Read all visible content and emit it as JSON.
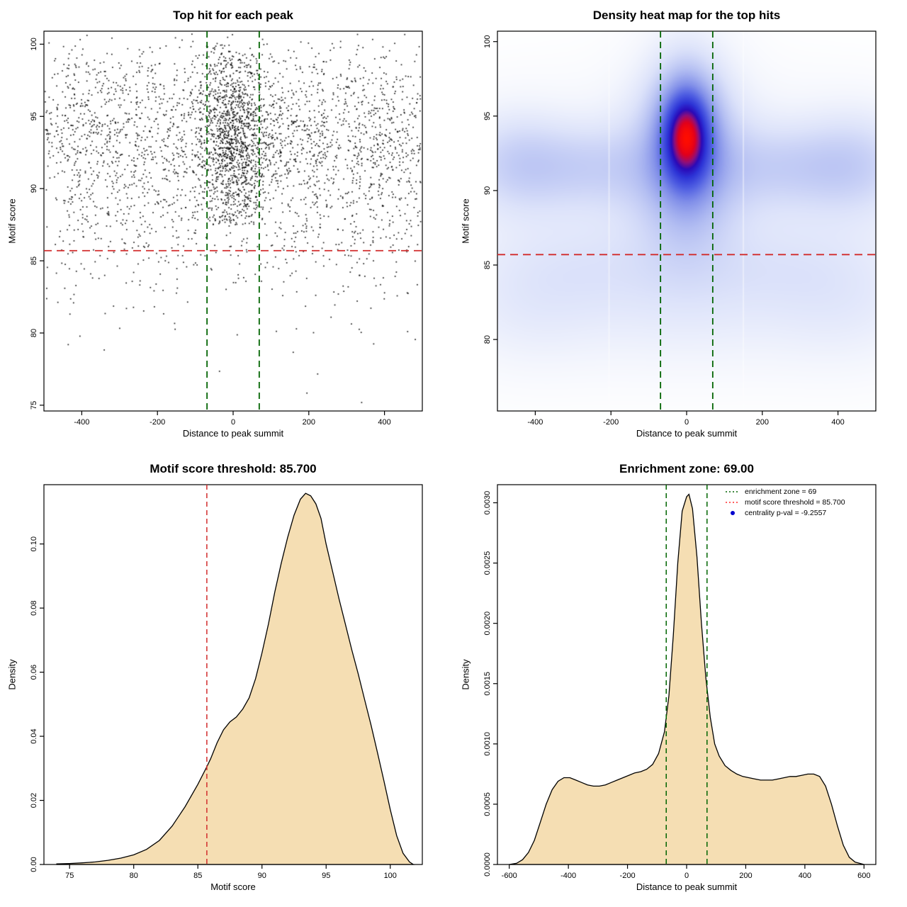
{
  "chart_data": [
    {
      "type": "scatter",
      "title": "Top hit for each peak",
      "xlabel": "Distance to peak summit",
      "ylabel": "Motif score",
      "xlim": [
        -500,
        500
      ],
      "ylim": [
        74.6,
        100.9
      ],
      "xticks": [
        -400,
        -200,
        0,
        200,
        400
      ],
      "xtick_labels": [
        "-400",
        "-200",
        "0",
        "200",
        "400"
      ],
      "yticks": [
        75,
        80,
        85,
        90,
        95,
        100
      ],
      "ytick_labels": [
        "75",
        "80",
        "85",
        "90",
        "95",
        "100"
      ],
      "point_color": "#000000",
      "n_points": 3800,
      "seed": 42,
      "generator": {
        "central_halfwidth": 95,
        "central_high_prob": 0.78,
        "central_min_y": 87.5,
        "x_marginal_ref": 3,
        "y_marginal_ref": 2
      },
      "lines": {
        "hline": {
          "y": 85.7,
          "color": "#d22b2b"
        },
        "vlines": {
          "xs": [
            -69,
            69
          ],
          "color": "#006400"
        }
      }
    },
    {
      "type": "heatmap",
      "title": "Density heat map for the top hits",
      "xlabel": "Distance to peak summit",
      "ylabel": "Motif score",
      "xlim": [
        -500,
        500
      ],
      "ylim": [
        75.2,
        100.7
      ],
      "xticks": [
        -400,
        -200,
        0,
        200,
        400
      ],
      "xtick_labels": [
        "-400",
        "-200",
        "0",
        "200",
        "400"
      ],
      "yticks": [
        80,
        85,
        90,
        95,
        100
      ],
      "ytick_labels": [
        "80",
        "85",
        "90",
        "95",
        "100"
      ],
      "blobs": [
        [
          0,
          93.8,
          40,
          2.0,
          1.0
        ],
        [
          0,
          93.3,
          62,
          3.2,
          0.6
        ],
        [
          0,
          92.3,
          100,
          4.6,
          0.32
        ],
        [
          -260,
          91.6,
          150,
          1.9,
          0.22
        ],
        [
          -455,
          91.9,
          95,
          2.3,
          0.2
        ],
        [
          255,
          91.6,
          150,
          1.9,
          0.22
        ],
        [
          450,
          91.8,
          100,
          2.4,
          0.2
        ],
        [
          0,
          91.5,
          460,
          4.0,
          0.08
        ],
        [
          -240,
          84.8,
          190,
          2.2,
          0.1
        ],
        [
          240,
          84.8,
          190,
          2.2,
          0.1
        ],
        [
          0,
          81.5,
          420,
          2.8,
          0.09
        ],
        [
          -430,
          82.5,
          130,
          3.0,
          0.07
        ],
        [
          430,
          82.5,
          130,
          3.0,
          0.07
        ],
        [
          0,
          87.5,
          500,
          5.0,
          0.05
        ]
      ],
      "colormap": [
        [
          0,
          "#ffffff"
        ],
        [
          0.06,
          "#f4f6fd"
        ],
        [
          0.16,
          "#dde3fa"
        ],
        [
          0.3,
          "#b3bef2"
        ],
        [
          0.45,
          "#8290e9"
        ],
        [
          0.58,
          "#4f5ee2"
        ],
        [
          0.7,
          "#2c33d6"
        ],
        [
          0.79,
          "#2a0ab8"
        ],
        [
          0.86,
          "#8f0f7a"
        ],
        [
          0.93,
          "#e1001c"
        ],
        [
          1,
          "#ff0d00"
        ]
      ],
      "streaks": [
        -205,
        150
      ],
      "lines": {
        "hline": {
          "y": 85.7,
          "color": "#d22b2b"
        },
        "vlines": {
          "xs": [
            -69,
            69
          ],
          "color": "#006400"
        }
      }
    },
    {
      "type": "density",
      "title": "Motif score threshold: 85.700",
      "xlabel": "Motif score",
      "ylabel": "Density",
      "xlim": [
        73,
        102.5
      ],
      "ylim": [
        0,
        0.1185
      ],
      "xticks": [
        75,
        80,
        85,
        90,
        95,
        100
      ],
      "xtick_labels": [
        "75",
        "80",
        "85",
        "90",
        "95",
        "100"
      ],
      "yticks": [
        0,
        0.02,
        0.04,
        0.06,
        0.08,
        0.1
      ],
      "ytick_labels": [
        "0.00",
        "0.02",
        "0.04",
        "0.06",
        "0.08",
        "0.10"
      ],
      "fill": "#f5deb3",
      "stroke": "#000000",
      "curve": [
        [
          74,
          0.0002
        ],
        [
          75,
          0.0003
        ],
        [
          76,
          0.0005
        ],
        [
          77,
          0.0008
        ],
        [
          78,
          0.0013
        ],
        [
          79,
          0.002
        ],
        [
          80,
          0.003
        ],
        [
          81,
          0.0047
        ],
        [
          82,
          0.0075
        ],
        [
          83,
          0.012
        ],
        [
          84,
          0.018
        ],
        [
          85,
          0.025
        ],
        [
          85.7,
          0.0305
        ],
        [
          86,
          0.033
        ],
        [
          86.5,
          0.038
        ],
        [
          87,
          0.042
        ],
        [
          87.5,
          0.0445
        ],
        [
          88,
          0.046
        ],
        [
          88.5,
          0.0485
        ],
        [
          89,
          0.052
        ],
        [
          89.5,
          0.058
        ],
        [
          90,
          0.066
        ],
        [
          90.5,
          0.075
        ],
        [
          91,
          0.085
        ],
        [
          91.5,
          0.094
        ],
        [
          92,
          0.102
        ],
        [
          92.5,
          0.109
        ],
        [
          93,
          0.114
        ],
        [
          93.4,
          0.1158
        ],
        [
          93.8,
          0.115
        ],
        [
          94.2,
          0.1125
        ],
        [
          94.6,
          0.108
        ],
        [
          95,
          0.1
        ],
        [
          95.5,
          0.0915
        ],
        [
          96,
          0.083
        ],
        [
          96.5,
          0.075
        ],
        [
          97,
          0.067
        ],
        [
          97.5,
          0.0595
        ],
        [
          98,
          0.0515
        ],
        [
          98.5,
          0.0435
        ],
        [
          99,
          0.035
        ],
        [
          99.5,
          0.0262
        ],
        [
          100,
          0.0172
        ],
        [
          100.5,
          0.009
        ],
        [
          101,
          0.0035
        ],
        [
          101.5,
          0.0008
        ],
        [
          101.8,
          0
        ]
      ],
      "lines": {
        "vlines": {
          "xs": [
            85.7
          ],
          "color": "#d22b2b",
          "width": 1.5,
          "dash": "7,5"
        }
      }
    },
    {
      "type": "density",
      "title": "Enrichment zone: 69.00",
      "xlabel": "Distance to peak summit",
      "ylabel": "Density",
      "xlim": [
        -640,
        640
      ],
      "ylim": [
        0,
        0.00315
      ],
      "xticks": [
        -600,
        -400,
        -200,
        0,
        200,
        400,
        600
      ],
      "xtick_labels": [
        "-600",
        "-400",
        "-200",
        "0",
        "200",
        "400",
        "600"
      ],
      "yticks": [
        0,
        0.0005,
        0.001,
        0.0015,
        0.002,
        0.0025,
        0.003
      ],
      "ytick_labels": [
        "0.0000",
        "0.0005",
        "0.0010",
        "0.0015",
        "0.0020",
        "0.0025",
        "0.0030"
      ],
      "fill": "#f5deb3",
      "stroke": "#000000",
      "curve": [
        [
          -600,
          0
        ],
        [
          -575,
          1e-05
        ],
        [
          -555,
          4e-05
        ],
        [
          -535,
          0.0001
        ],
        [
          -515,
          0.0002
        ],
        [
          -495,
          0.00035
        ],
        [
          -475,
          0.0005
        ],
        [
          -455,
          0.00062
        ],
        [
          -435,
          0.00069
        ],
        [
          -415,
          0.00072
        ],
        [
          -395,
          0.00072
        ],
        [
          -375,
          0.0007
        ],
        [
          -355,
          0.00068
        ],
        [
          -335,
          0.00066
        ],
        [
          -315,
          0.00065
        ],
        [
          -295,
          0.00065
        ],
        [
          -275,
          0.00066
        ],
        [
          -255,
          0.00068
        ],
        [
          -235,
          0.0007
        ],
        [
          -215,
          0.00072
        ],
        [
          -195,
          0.00074
        ],
        [
          -175,
          0.00076
        ],
        [
          -155,
          0.00077
        ],
        [
          -135,
          0.00079
        ],
        [
          -115,
          0.00083
        ],
        [
          -95,
          0.00092
        ],
        [
          -75,
          0.0011
        ],
        [
          -60,
          0.0014
        ],
        [
          -45,
          0.0019
        ],
        [
          -30,
          0.0025
        ],
        [
          -15,
          0.00293
        ],
        [
          0,
          0.00305
        ],
        [
          8,
          0.00307
        ],
        [
          20,
          0.00295
        ],
        [
          35,
          0.00255
        ],
        [
          50,
          0.002
        ],
        [
          65,
          0.00155
        ],
        [
          80,
          0.00122
        ],
        [
          95,
          0.001
        ],
        [
          110,
          0.0009
        ],
        [
          130,
          0.00082
        ],
        [
          150,
          0.00078
        ],
        [
          170,
          0.00075
        ],
        [
          190,
          0.00073
        ],
        [
          210,
          0.00072
        ],
        [
          230,
          0.00071
        ],
        [
          250,
          0.0007
        ],
        [
          270,
          0.0007
        ],
        [
          290,
          0.0007
        ],
        [
          310,
          0.00071
        ],
        [
          330,
          0.00072
        ],
        [
          350,
          0.00073
        ],
        [
          370,
          0.00073
        ],
        [
          390,
          0.00074
        ],
        [
          410,
          0.00075
        ],
        [
          430,
          0.00075
        ],
        [
          450,
          0.00073
        ],
        [
          470,
          0.00065
        ],
        [
          490,
          0.0005
        ],
        [
          510,
          0.00032
        ],
        [
          530,
          0.00016
        ],
        [
          550,
          6e-05
        ],
        [
          570,
          2e-05
        ],
        [
          600,
          0
        ]
      ],
      "lines": {
        "vlines": {
          "xs": [
            -69,
            69
          ],
          "color": "#006400",
          "width": 1.5,
          "dash": "7,5"
        }
      },
      "legend": [
        {
          "label": "enrichment zone = 69",
          "color": "#006400",
          "marker": "dotted-line"
        },
        {
          "label": "motif score threshold = 85.700",
          "color": "#ff2a2a",
          "marker": "dotted-line"
        },
        {
          "label": "centrality p-val = -9.2557",
          "color": "#0000cd",
          "marker": "dot"
        }
      ]
    }
  ]
}
